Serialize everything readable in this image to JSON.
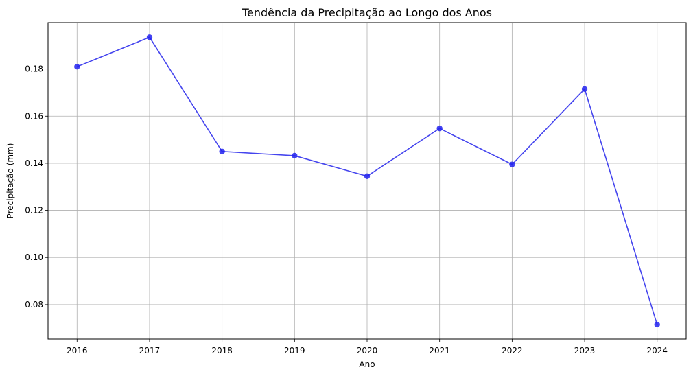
{
  "chart_data": {
    "type": "line",
    "title": "Tendência da Precipitação  ao Longo dos Anos",
    "xlabel": "Ano",
    "ylabel": "Precipitação (mm)",
    "x": [
      2016,
      2017,
      2018,
      2019,
      2020,
      2021,
      2022,
      2023,
      2024
    ],
    "series": [
      {
        "values": [
          0.181,
          0.1935,
          0.145,
          0.1432,
          0.1345,
          0.1548,
          0.1395,
          0.1715,
          0.0715
        ]
      }
    ],
    "xlim": [
      2015.6,
      2024.4
    ],
    "ylim": [
      0.0654,
      0.1997
    ],
    "y_ticks": [
      0.08,
      0.1,
      0.12,
      0.14,
      0.16,
      0.18
    ],
    "y_tick_labels": [
      "0.08",
      "0.10",
      "0.12",
      "0.14",
      "0.16",
      "0.18"
    ],
    "x_ticks": [
      2016,
      2017,
      2018,
      2019,
      2020,
      2021,
      2022,
      2023,
      2024
    ],
    "x_tick_labels": [
      "2016",
      "2017",
      "2018",
      "2019",
      "2020",
      "2021",
      "2022",
      "2023",
      "2024"
    ],
    "grid": true,
    "colors": {
      "line": "#4444ee",
      "marker": "#2222ee",
      "grid": "#b0b0b0"
    }
  }
}
